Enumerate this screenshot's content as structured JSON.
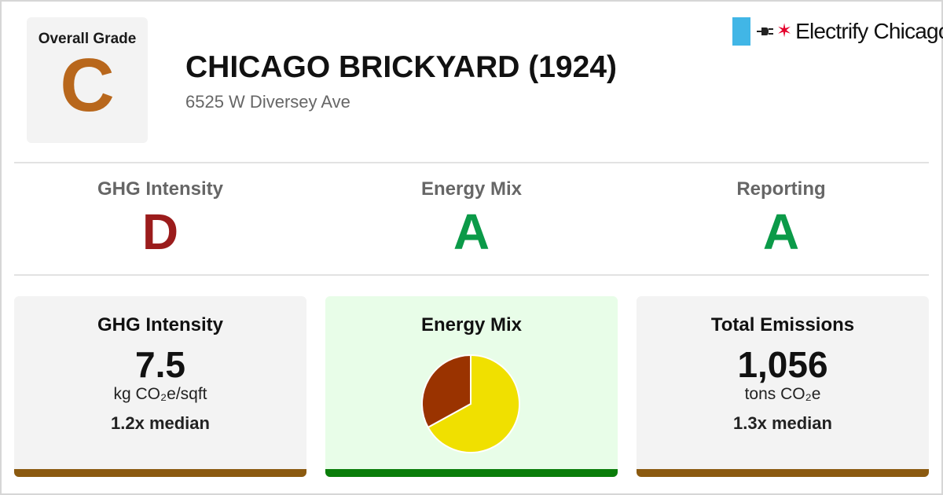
{
  "overall": {
    "label": "Overall Grade",
    "grade": "C",
    "color": "#b8671c"
  },
  "building": {
    "name": "CHICAGO BRICKYARD (1924)",
    "address": "6525 W Diversey Ave"
  },
  "logo": {
    "text": "Electrify Chicago",
    "icons": [
      "blue-bar-icon",
      "plug-icon",
      "red-star-icon"
    ],
    "blue": "#41b6e6",
    "red": "#e4002b"
  },
  "grades": [
    {
      "name": "GHG Intensity",
      "grade": "D",
      "color": "#9b1c1c"
    },
    {
      "name": "Energy Mix",
      "grade": "A",
      "color": "#0b9a48"
    },
    {
      "name": "Reporting",
      "grade": "A",
      "color": "#0b9a48"
    }
  ],
  "cards": {
    "ghg": {
      "title": "GHG Intensity",
      "value": "7.5",
      "unit": "kg CO₂e/sqft",
      "median": "1.2x median",
      "bar_color": "#8b5a10"
    },
    "mix": {
      "title": "Energy Mix",
      "bar_color": "#0a7d0a"
    },
    "total": {
      "title": "Total Emissions",
      "value": "1,056",
      "unit": "tons CO₂e",
      "median": "1.3x median",
      "bar_color": "#8b5a10"
    }
  },
  "chart_data": {
    "type": "pie",
    "title": "Energy Mix",
    "slices": [
      {
        "label": "",
        "fraction": 0.67,
        "color": "#f0e000"
      },
      {
        "label": "",
        "fraction": 0.33,
        "color": "#9a3300"
      }
    ],
    "start_angle_deg": 0,
    "stroke": "#ffffff"
  }
}
